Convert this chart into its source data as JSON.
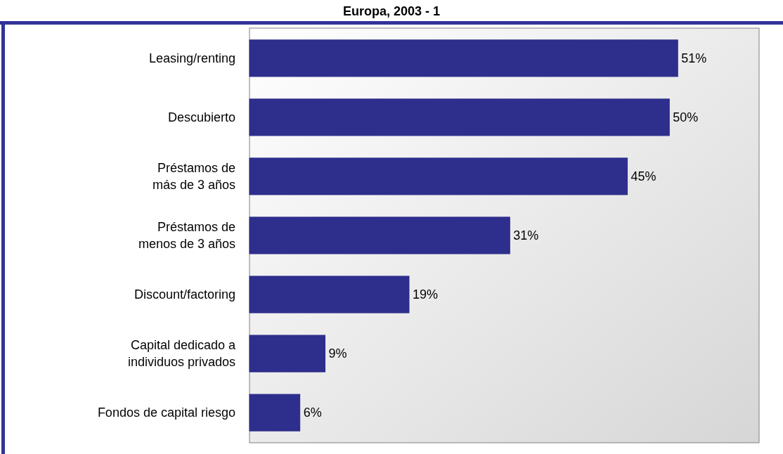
{
  "chart_data": {
    "type": "bar",
    "orientation": "horizontal",
    "title": "Europa, 2003 - 1",
    "categories": [
      "Leasing/renting",
      "Descubierto",
      "Préstamos de más de 3 años",
      "Préstamos de menos de 3 años",
      "Discount/factoring",
      "Capital dedicado a individuos privados",
      "Fondos de capital riesgo"
    ],
    "values": [
      51,
      50,
      45,
      31,
      19,
      9,
      6
    ],
    "value_labels": [
      "51%",
      "50%",
      "45%",
      "31%",
      "19%",
      "9%",
      "6%"
    ],
    "color": "#2e2e8c"
  }
}
